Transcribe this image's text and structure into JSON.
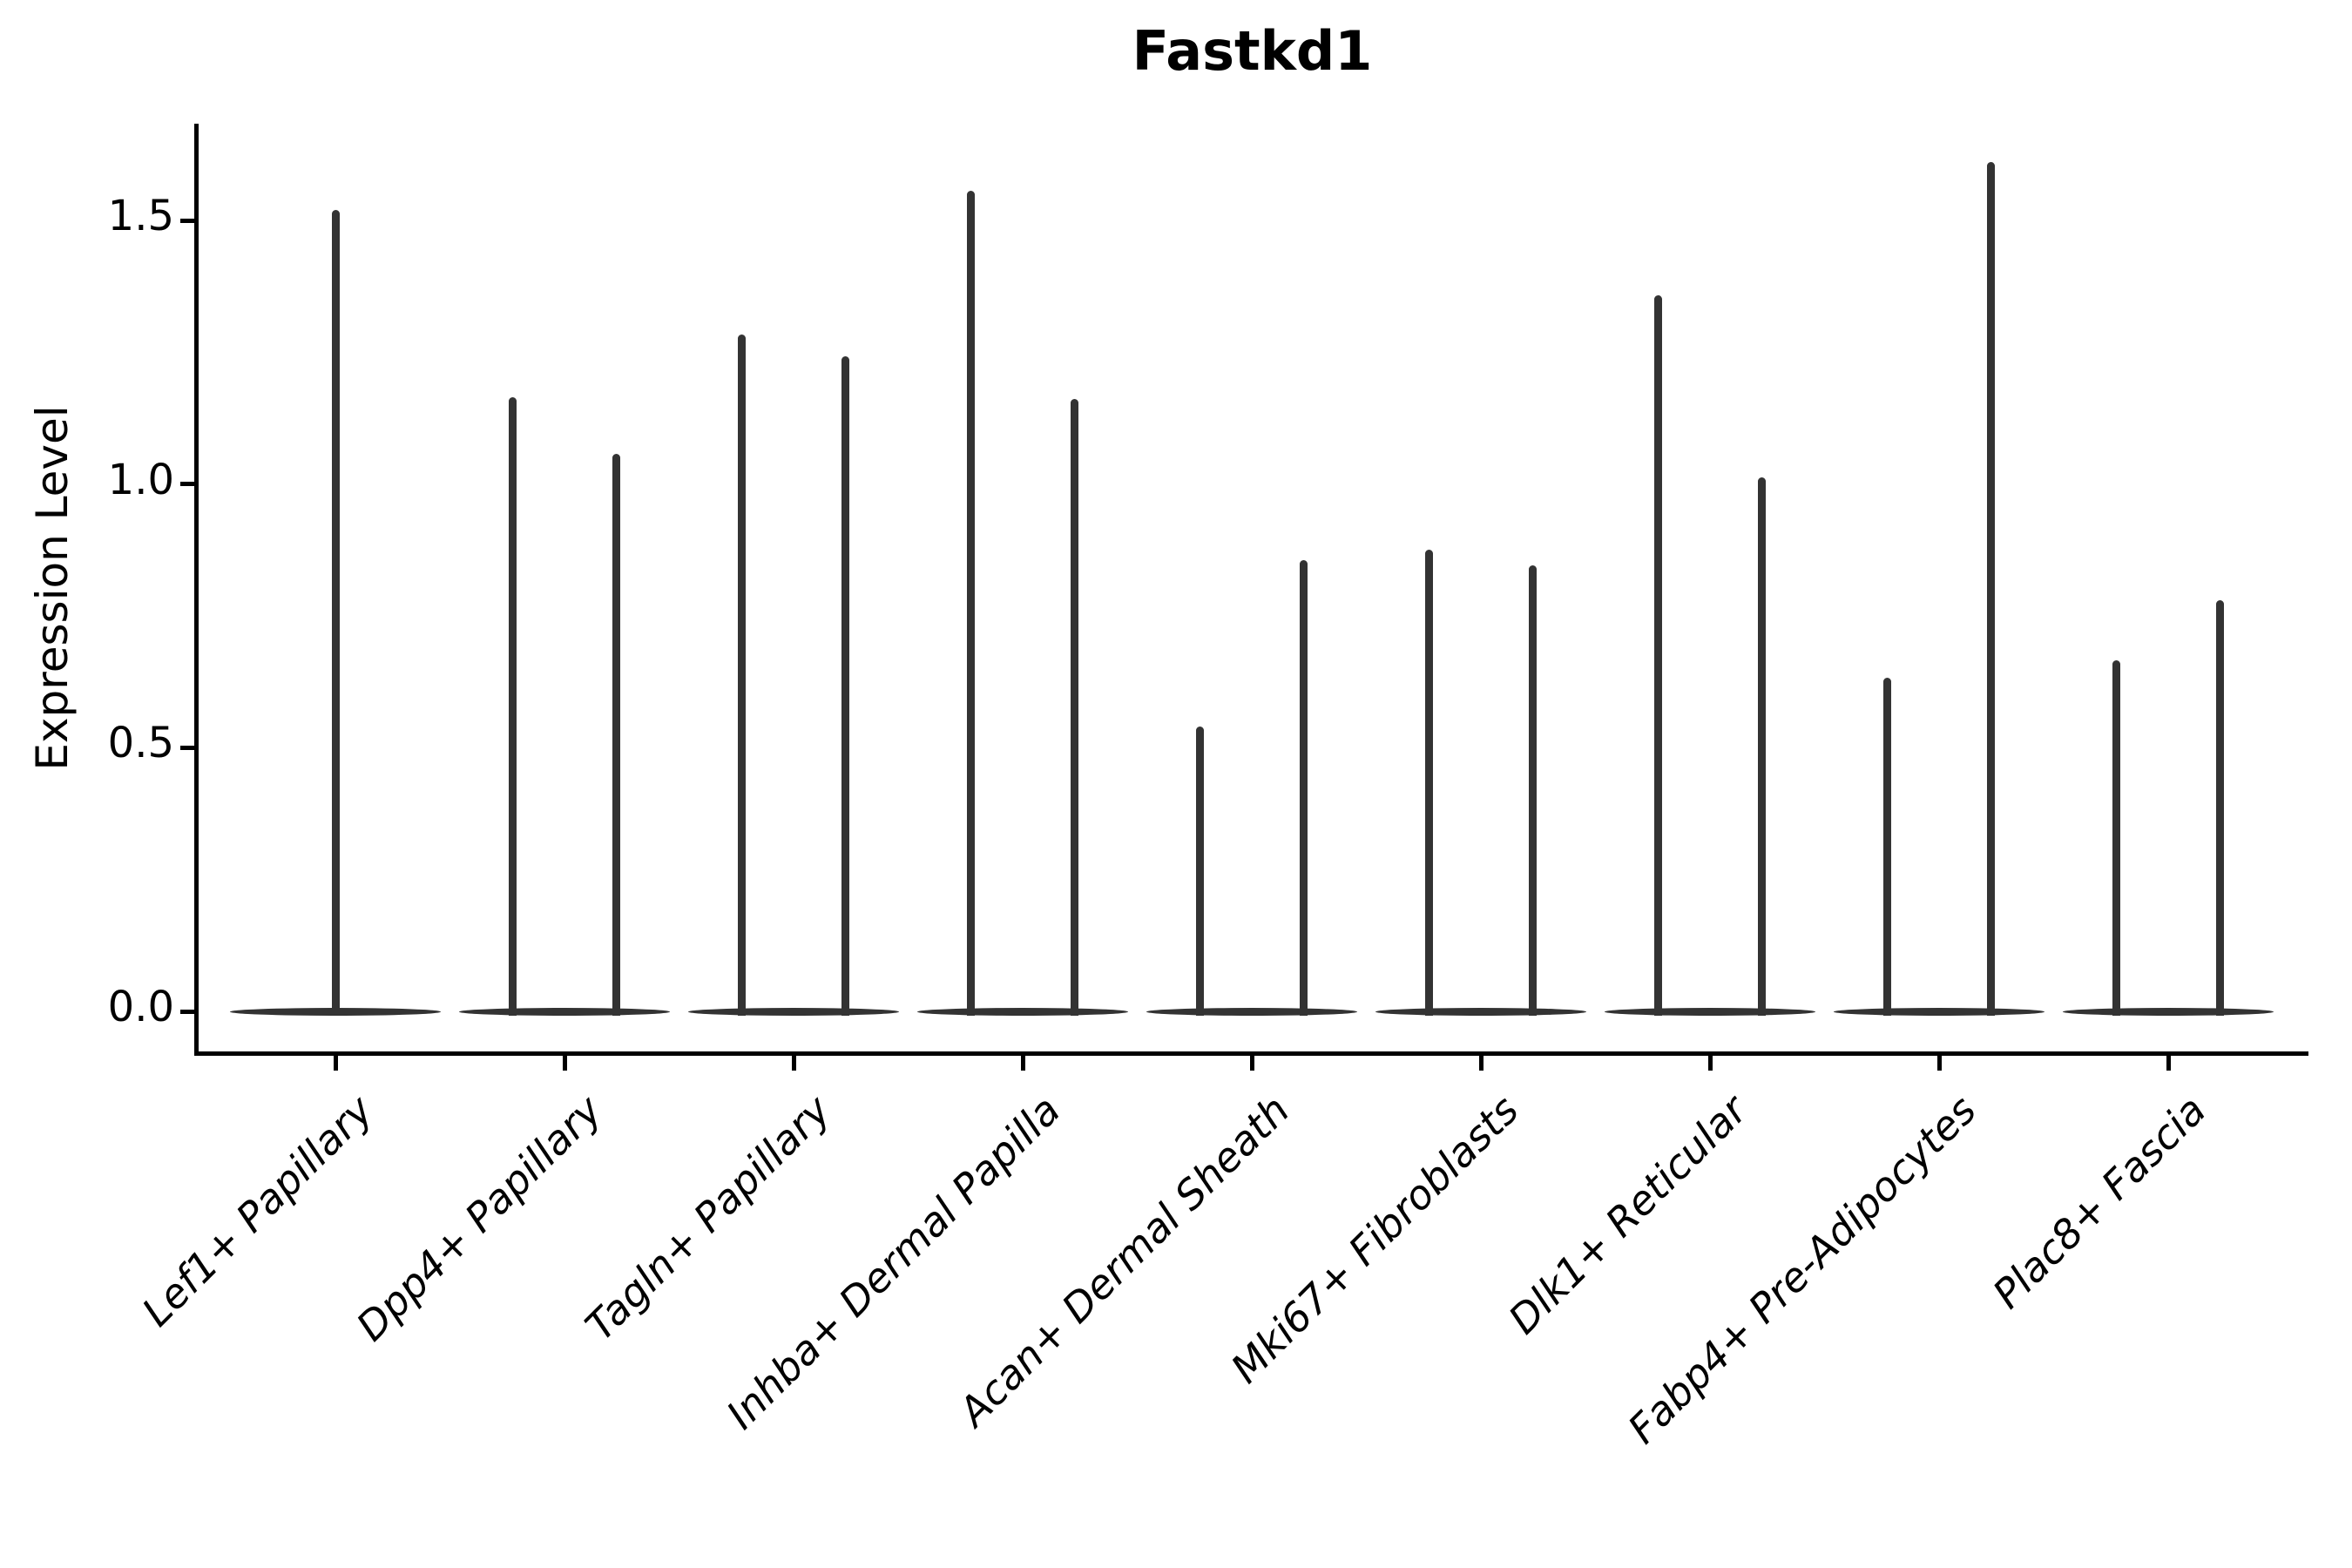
{
  "title": "Fastkd1",
  "chart_data": {
    "type": "violin",
    "title": "Fastkd1",
    "ylabel": "Expression Level",
    "xlabel": "",
    "ytick_labels": [
      "0.0",
      "0.5",
      "1.0",
      "1.5"
    ],
    "ytick_values": [
      0.0,
      0.5,
      1.0,
      1.5
    ],
    "ylim": [
      -0.08,
      1.68
    ],
    "grid": false,
    "legend_position": "none",
    "categories": [
      "Lef1+ Papillary",
      "Dpp4+ Papillary",
      "Tagln+ Papillary",
      "Inhba+ Dermal Papilla",
      "Acan+ Dermal Sheath",
      "Mki67+ Fibroblasts",
      "Dlk1+ Reticular",
      "Fabp4+ Pre-Adipocytes",
      "Plac8+ Fascia"
    ],
    "series": [
      {
        "category": "Lef1+ Papillary",
        "spike_max_values": [
          1.52
        ]
      },
      {
        "category": "Dpp4+ Papillary",
        "spike_max_values": [
          1.165,
          1.057
        ]
      },
      {
        "category": "Tagln+ Papillary",
        "spike_max_values": [
          1.284,
          1.242
        ]
      },
      {
        "category": "Inhba+ Dermal Papilla",
        "spike_max_values": [
          1.556,
          1.161
        ]
      },
      {
        "category": "Acan+ Dermal Sheath",
        "spike_max_values": [
          0.54,
          0.856
        ]
      },
      {
        "category": "Mki67+ Fibroblasts",
        "spike_max_values": [
          0.875,
          0.845
        ]
      },
      {
        "category": "Dlk1+ Reticular",
        "spike_max_values": [
          1.358,
          1.012
        ]
      },
      {
        "category": "Fabp4+ Pre-Adipocytes",
        "spike_max_values": [
          0.633,
          1.61
        ]
      },
      {
        "category": "Plac8+ Fascia",
        "spike_max_values": [
          0.665,
          0.78
        ]
      }
    ],
    "style": {
      "violin_color": "#333333",
      "axis_color": "#000000",
      "background_color": "#ffffff"
    },
    "notes": "Most density mass at 0 (flat base of each violin); thin vertical tails reach listed max expression values. First category shows a single centered tail; others show two tails."
  }
}
